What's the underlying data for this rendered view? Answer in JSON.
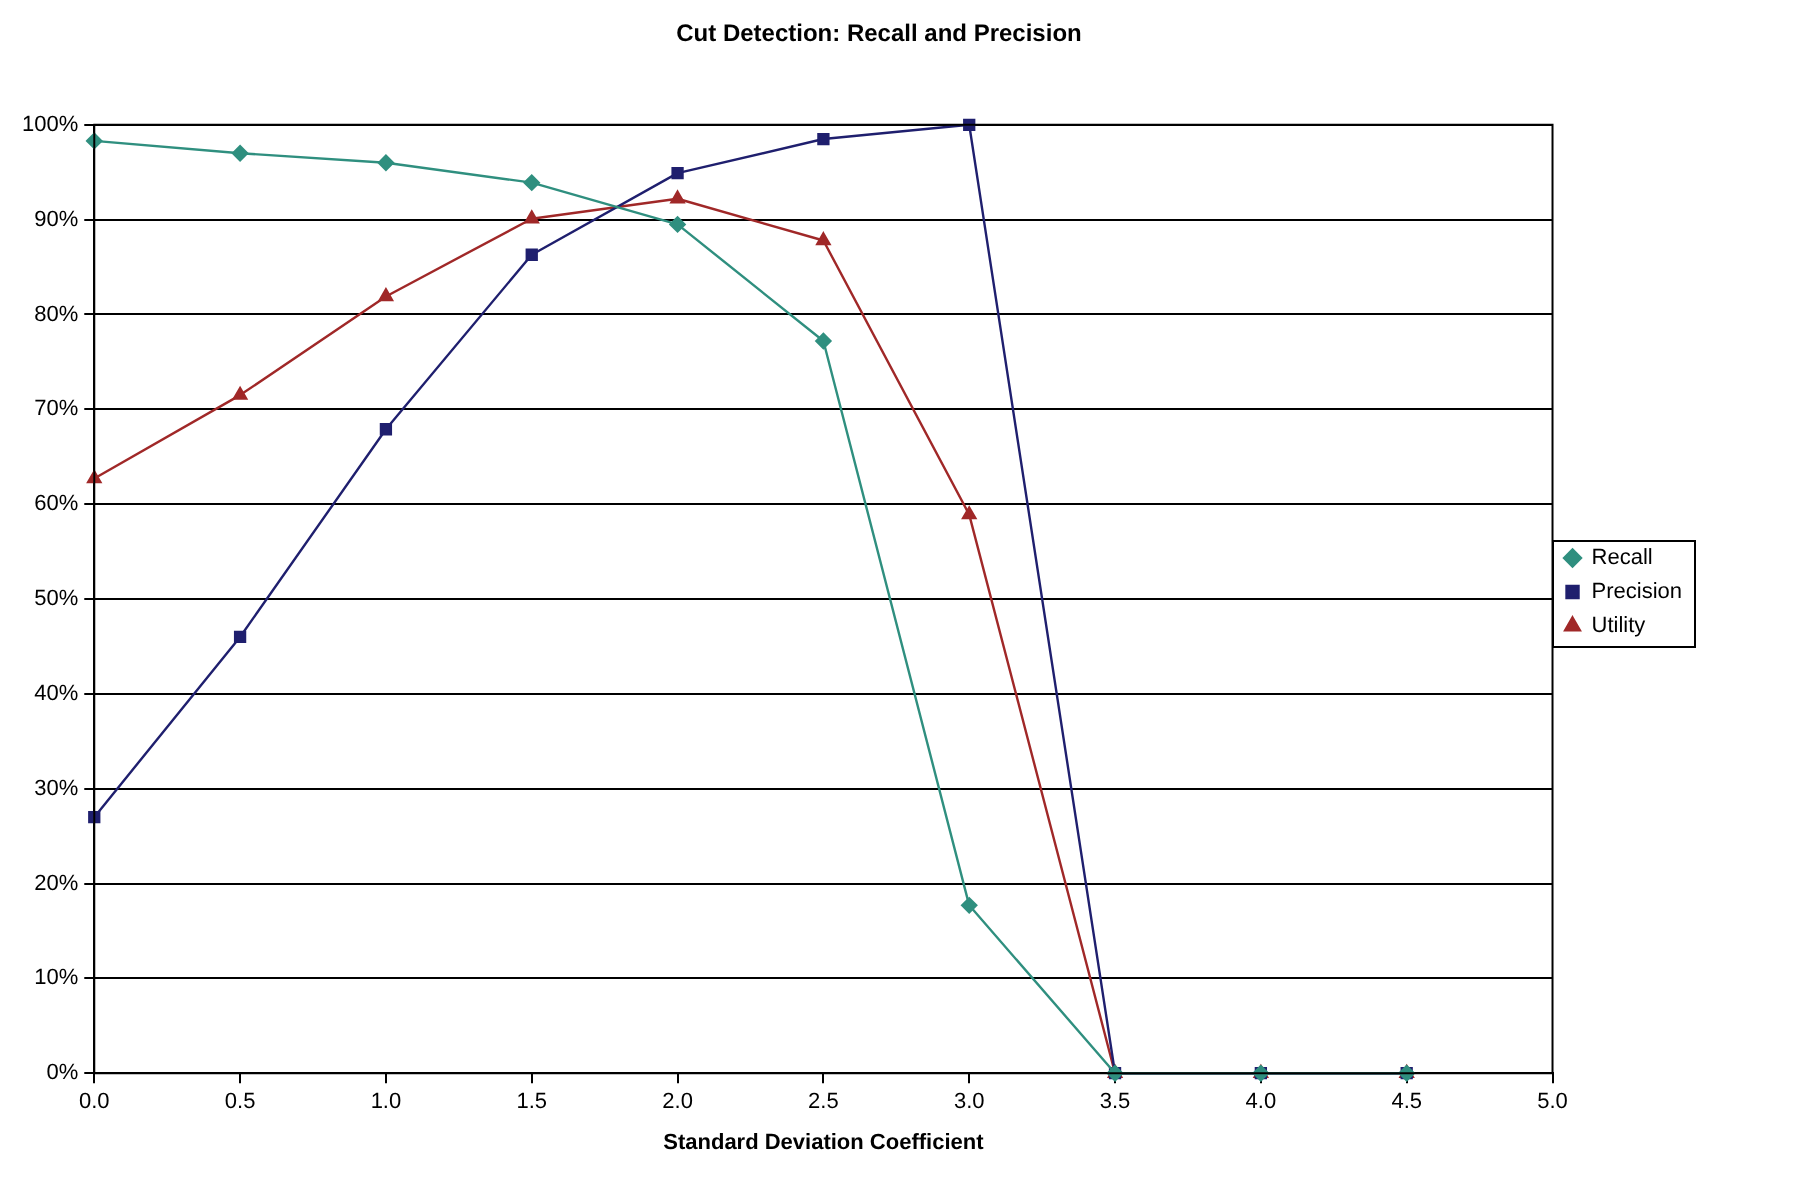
{
  "chart_data": {
    "type": "line",
    "title": "Cut Detection: Recall and Precision",
    "xlabel": "Standard Deviation Coefficient",
    "x": [
      0,
      0.5,
      1,
      1.5,
      2,
      2.5,
      3,
      3.5,
      4,
      4.5
    ],
    "series": [
      {
        "name": "Recall",
        "color": "#2f8f7f",
        "marker": "diamond",
        "values": [
          98.3,
          97,
          96,
          93.9,
          89.5,
          77.2,
          17.7,
          0,
          0,
          0
        ]
      },
      {
        "name": "Precision",
        "color": "#1f1f6e",
        "marker": "square",
        "values": [
          27,
          46,
          67.9,
          86.3,
          94.9,
          98.5,
          100,
          0,
          0,
          0
        ]
      },
      {
        "name": "Utility",
        "color": "#a02828",
        "marker": "triangle",
        "values": [
          62.7,
          71.5,
          81.9,
          90.1,
          92.2,
          87.8,
          58.9,
          0,
          0,
          0
        ]
      }
    ],
    "xlim": [
      0,
      5
    ],
    "xticks": [
      {
        "value": 0,
        "label": "0.0"
      },
      {
        "value": 0.5,
        "label": "0.5"
      },
      {
        "value": 1,
        "label": "1.0"
      },
      {
        "value": 1.5,
        "label": "1.5"
      },
      {
        "value": 2,
        "label": "2.0"
      },
      {
        "value": 2.5,
        "label": "2.5"
      },
      {
        "value": 3,
        "label": "3.0"
      },
      {
        "value": 3.5,
        "label": "3.5"
      },
      {
        "value": 4,
        "label": "4.0"
      },
      {
        "value": 4.5,
        "label": "4.5"
      },
      {
        "value": 5,
        "label": "5.0"
      }
    ],
    "ylim": [
      0,
      100
    ],
    "yticks": [
      {
        "value": 0,
        "label": "0%"
      },
      {
        "value": 10,
        "label": "10%"
      },
      {
        "value": 20,
        "label": "20%"
      },
      {
        "value": 30,
        "label": "30%"
      },
      {
        "value": 40,
        "label": "40%"
      },
      {
        "value": 50,
        "label": "50%"
      },
      {
        "value": 60,
        "label": "60%"
      },
      {
        "value": 70,
        "label": "70%"
      },
      {
        "value": 80,
        "label": "80%"
      },
      {
        "value": 90,
        "label": "90%"
      },
      {
        "value": 100,
        "label": "100%"
      }
    ],
    "grid": "y",
    "legend": "right",
    "line_style": "solid"
  }
}
